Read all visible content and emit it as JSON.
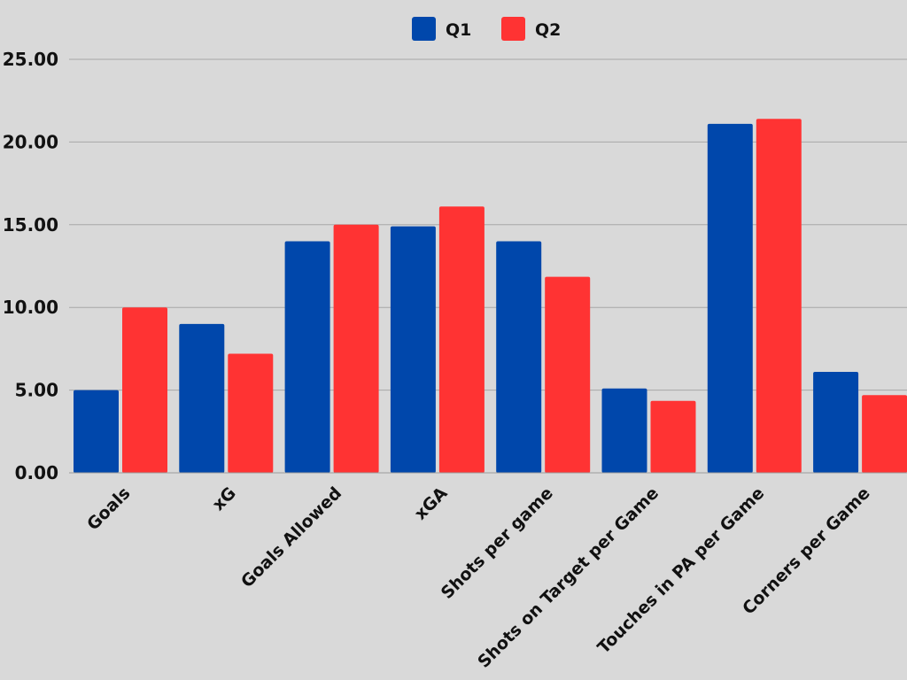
{
  "chart_data": {
    "type": "bar",
    "title": "",
    "xlabel": "",
    "ylabel": "",
    "categories": [
      "Goals",
      "xG",
      "Goals Allowed",
      "xGA",
      "Shots per game",
      "Shots on Target per Game",
      "Touches in PA per Game",
      "Corners per Game"
    ],
    "series": [
      {
        "name": "Q1",
        "color": "#0047ab",
        "values": [
          5.0,
          9.0,
          14.0,
          14.9,
          14.0,
          5.1,
          21.1,
          6.1
        ]
      },
      {
        "name": "Q2",
        "color": "#ff3333",
        "values": [
          10.0,
          7.2,
          15.0,
          16.1,
          11.85,
          4.35,
          21.4,
          4.7
        ]
      }
    ],
    "ylim": [
      0,
      25
    ],
    "yticks": [
      "0.00",
      "5.00",
      "10.00",
      "15.00",
      "20.00",
      "25.00"
    ],
    "ytick_values": [
      0,
      5,
      10,
      15,
      20,
      25
    ],
    "grid": true,
    "legend_position": "top-center"
  }
}
